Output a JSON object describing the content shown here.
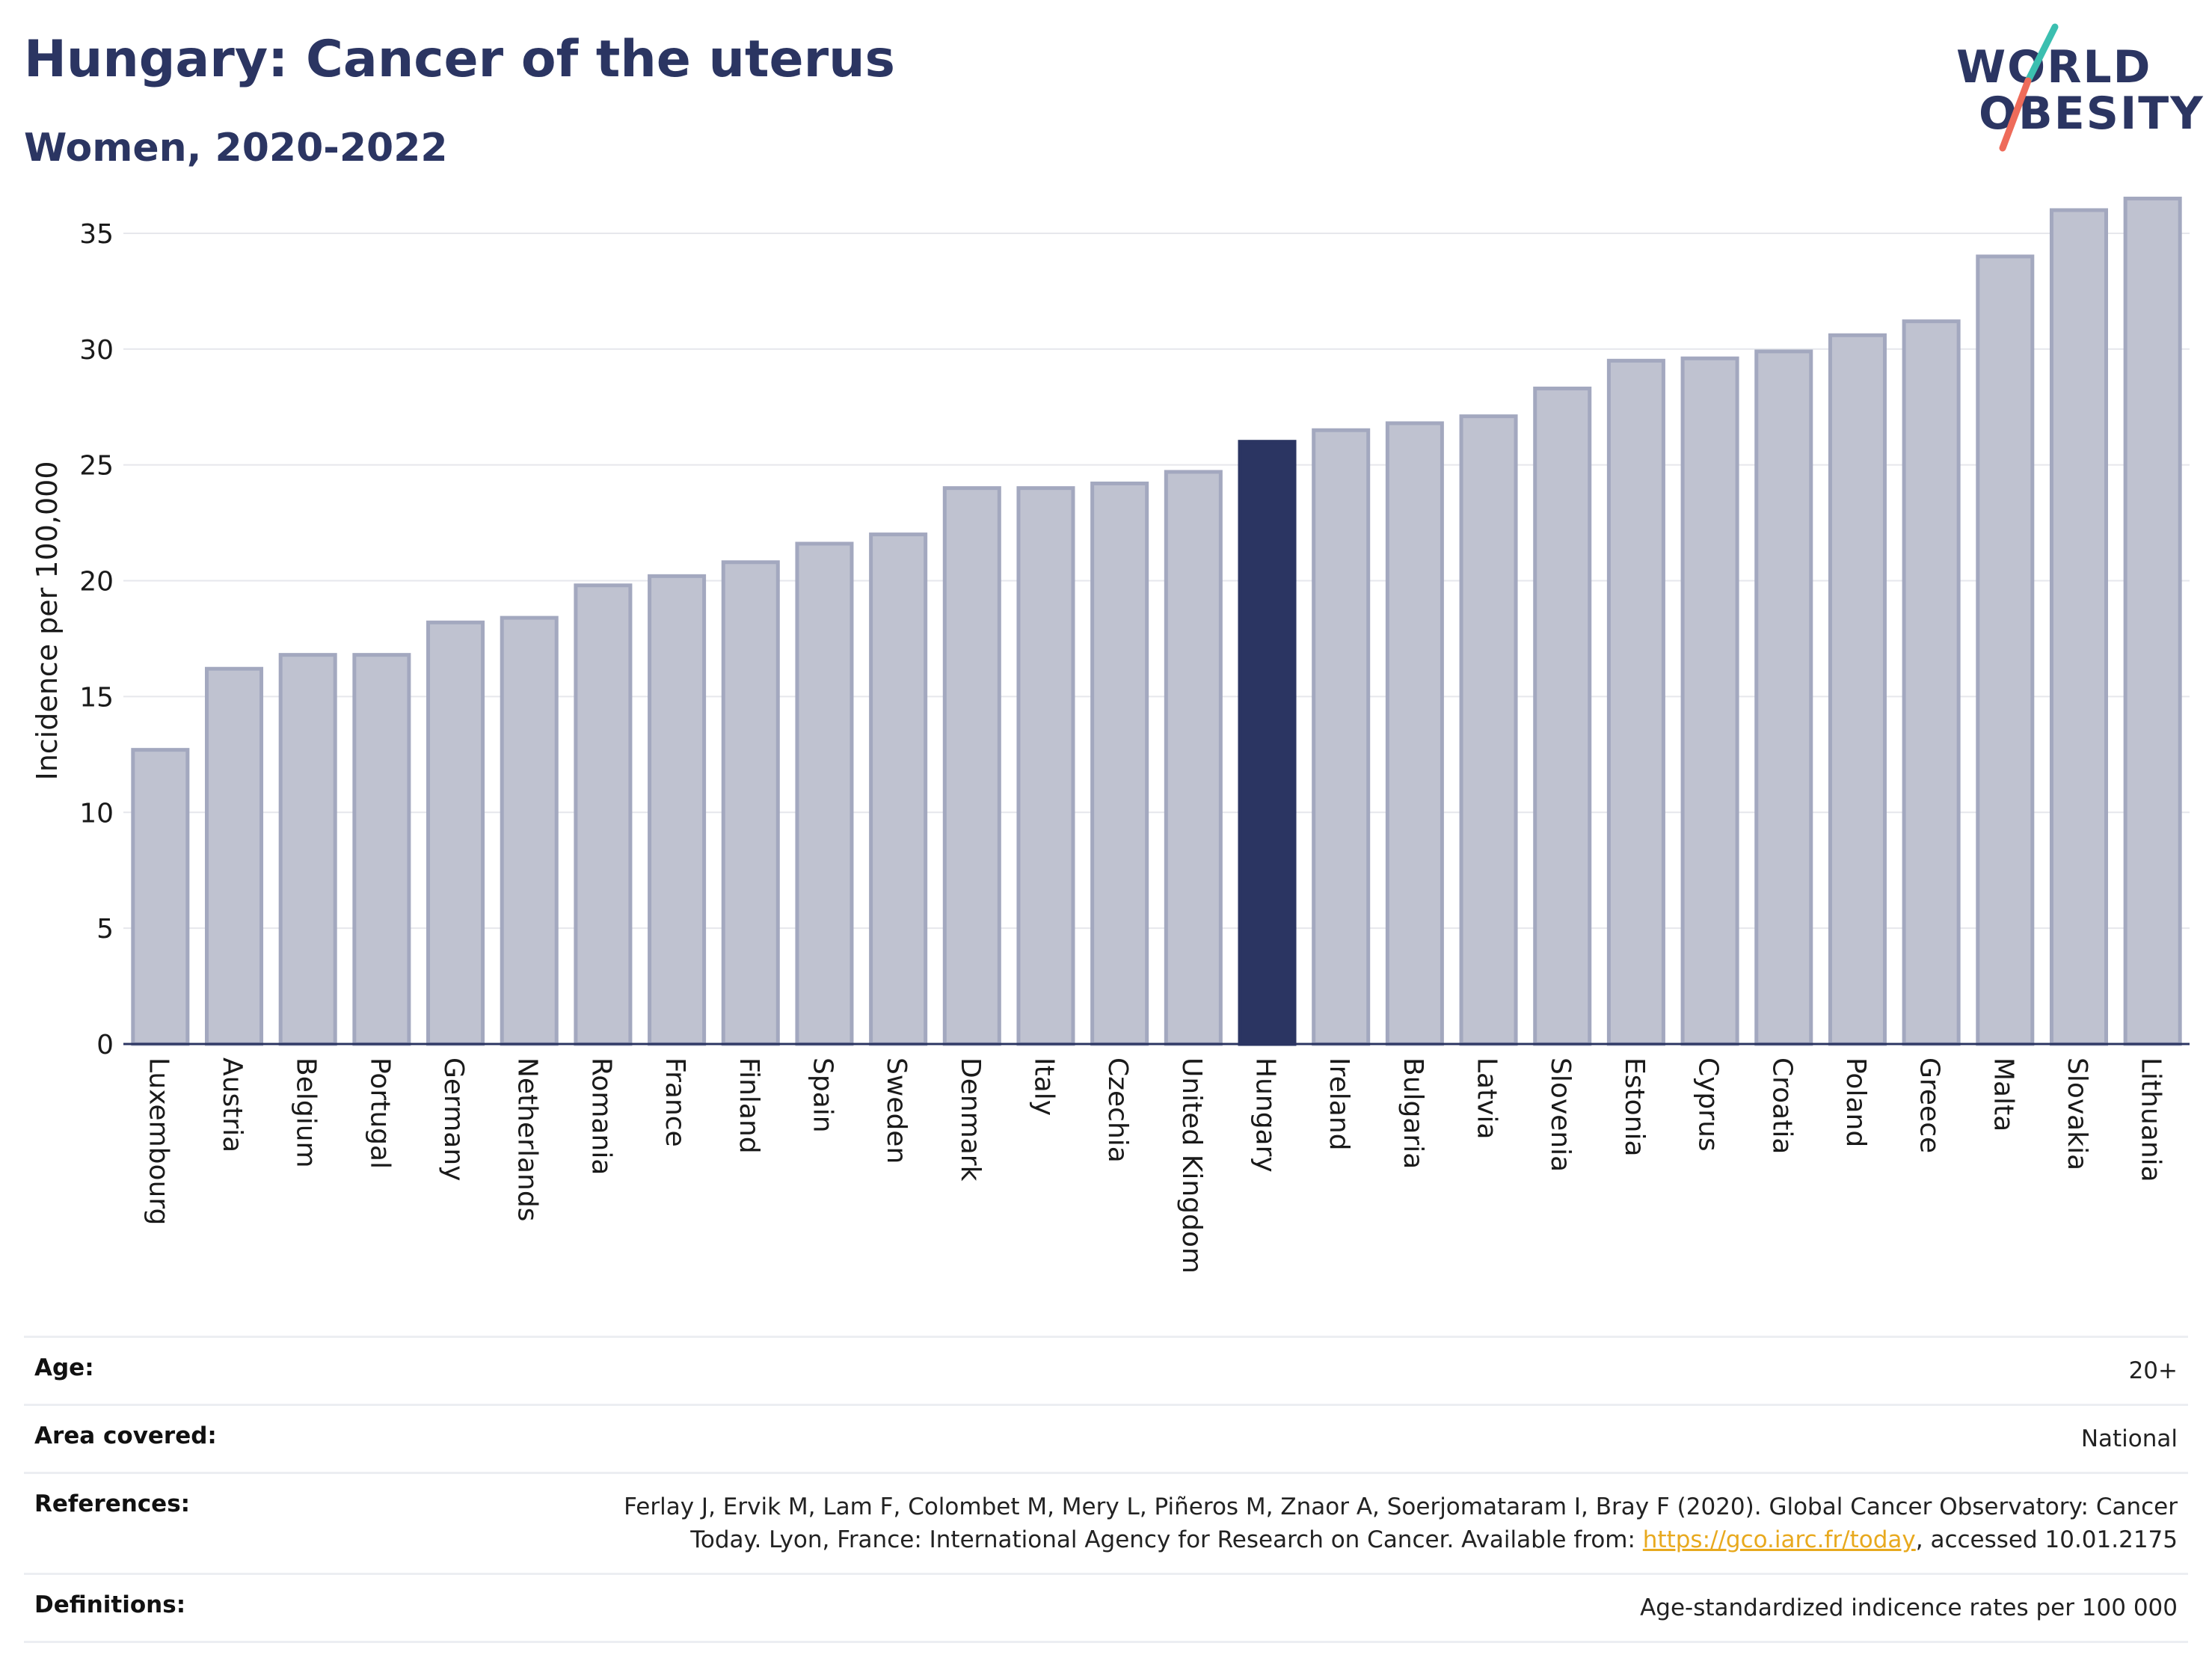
{
  "header": {
    "title": "Hungary: Cancer of the uterus",
    "subtitle": "Women, 2020-2022",
    "logo_text_line1": "WORLD",
    "logo_text_line2": "OBESITY"
  },
  "colors": {
    "title": "#2b3562",
    "bar_default": "#bfc2d0",
    "bar_default_edge": "#a3a8bf",
    "bar_highlight": "#2b3562",
    "link": "#e8a91e",
    "logo_teal": "#3bbfb0",
    "logo_coral": "#ee6b5a"
  },
  "chart_data": {
    "type": "bar",
    "ylabel": "Incidence per 100,000",
    "xlabel": "",
    "ylim": [
      0,
      37
    ],
    "yticks": [
      0,
      5,
      10,
      15,
      20,
      25,
      30,
      35
    ],
    "grid": true,
    "highlight": "Hungary",
    "categories": [
      "Luxembourg",
      "Austria",
      "Belgium",
      "Portugal",
      "Germany",
      "Netherlands",
      "Romania",
      "France",
      "Finland",
      "Spain",
      "Sweden",
      "Denmark",
      "Italy",
      "Czechia",
      "United Kingdom",
      "Hungary",
      "Ireland",
      "Bulgaria",
      "Latvia",
      "Slovenia",
      "Estonia",
      "Cyprus",
      "Croatia",
      "Poland",
      "Greece",
      "Malta",
      "Slovakia",
      "Lithuania"
    ],
    "values": [
      12.7,
      16.2,
      16.8,
      16.8,
      18.2,
      18.4,
      19.8,
      20.2,
      20.8,
      21.6,
      22.0,
      24.0,
      24.0,
      24.2,
      24.7,
      26.0,
      26.5,
      26.8,
      27.1,
      28.3,
      29.5,
      29.6,
      29.9,
      30.6,
      31.2,
      34.0,
      36.0,
      36.5
    ]
  },
  "info": {
    "age_label": "Age:",
    "age_value": "20+",
    "area_label": "Area covered:",
    "area_value": "National",
    "references_label": "References:",
    "references_line1": "Ferlay J, Ervik M, Lam F, Colombet M, Mery L, Piñeros M, Znaor A, Soerjomataram I, Bray F (2020). Global Cancer Observatory: Cancer",
    "references_line2_pre": "Today. Lyon, France: International Agency for Research on Cancer. Available from: ",
    "references_link": "https://gco.iarc.fr/today",
    "references_line2_post": ", accessed 10.01.2175",
    "definitions_label": "Definitions:",
    "definitions_value": "Age-standardized indicence rates per 100 000"
  }
}
